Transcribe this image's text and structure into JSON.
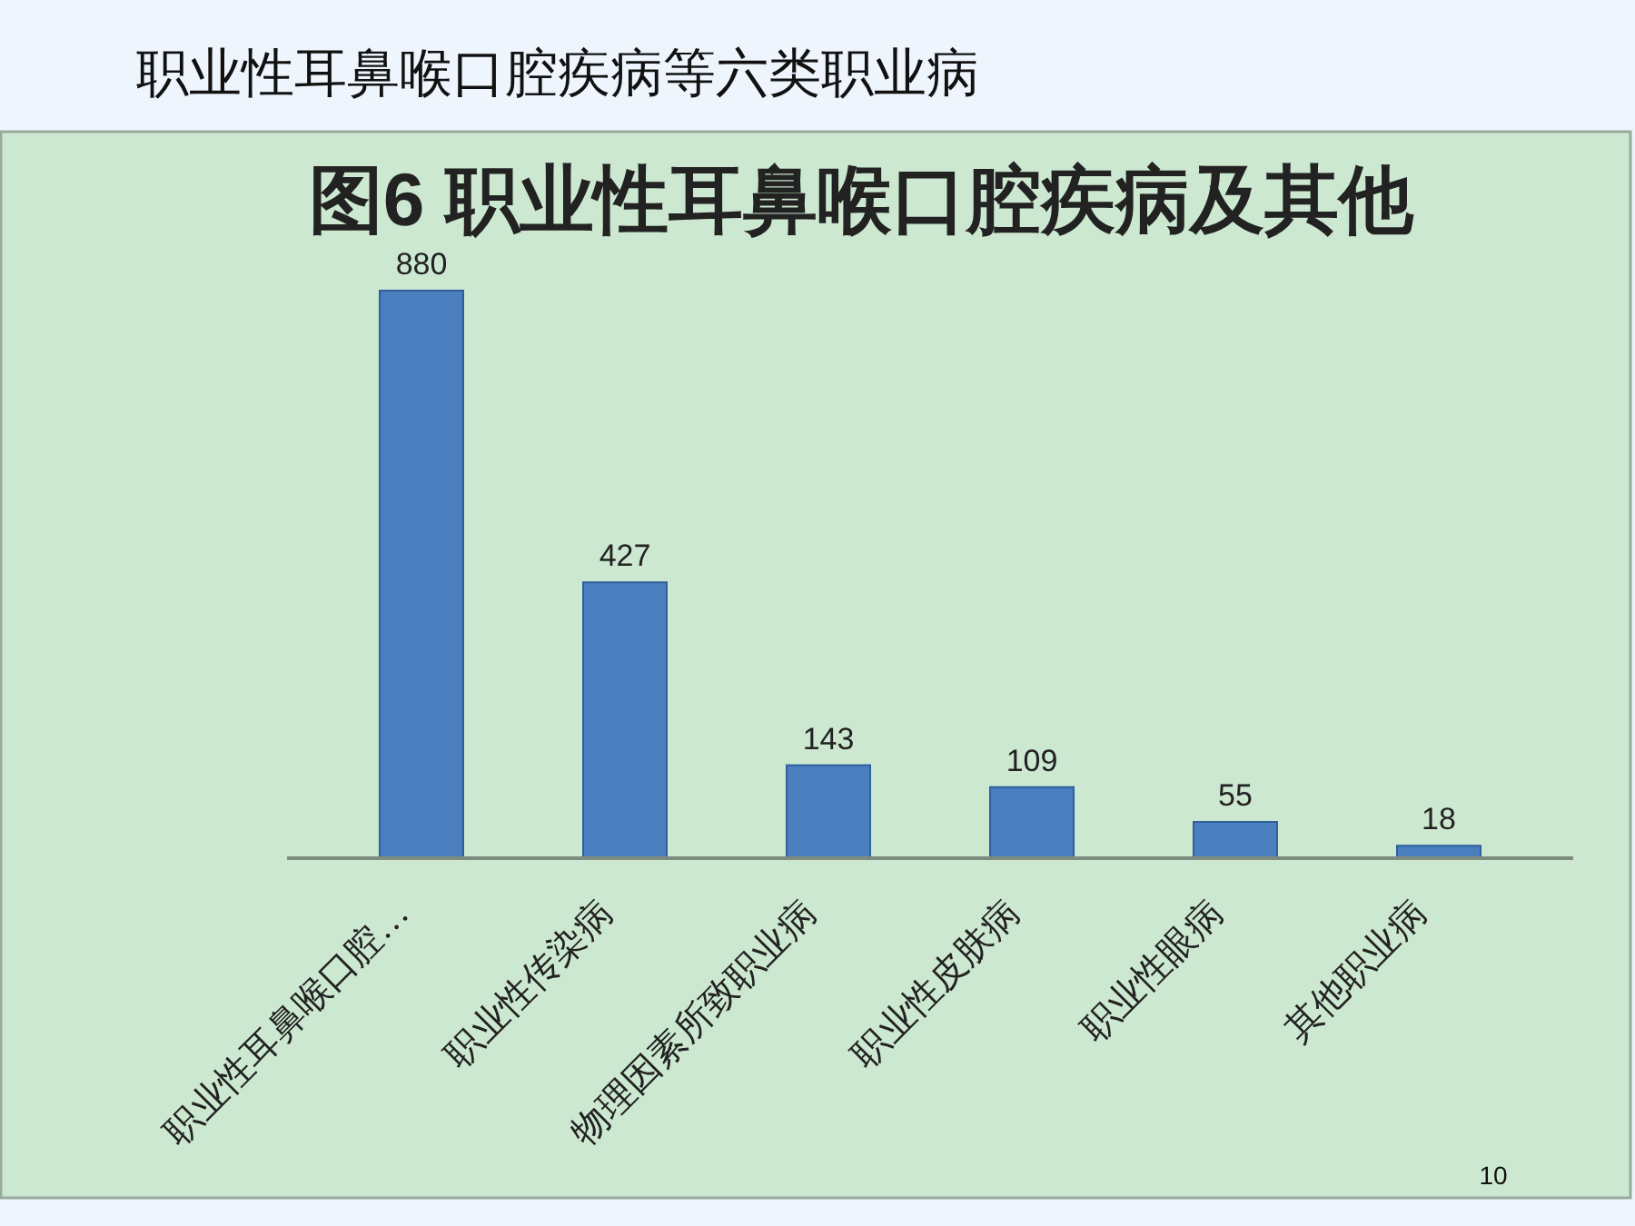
{
  "chart_data": {
    "type": "bar",
    "title": "职业性耳鼻喉口腔疾病等六类职业病",
    "subtitle": "图6 职业性耳鼻喉口腔疾病及其他",
    "categories": [
      "职业性耳鼻喉口腔…",
      "职业性传染病",
      "物理因素所致职业病",
      "职业性皮肤病",
      "职业性眼病",
      "其他职业病"
    ],
    "values": [
      880,
      427,
      143,
      109,
      55,
      18
    ],
    "color": "#4a7ebf",
    "data_labels": true,
    "annotations": [
      "10"
    ]
  }
}
